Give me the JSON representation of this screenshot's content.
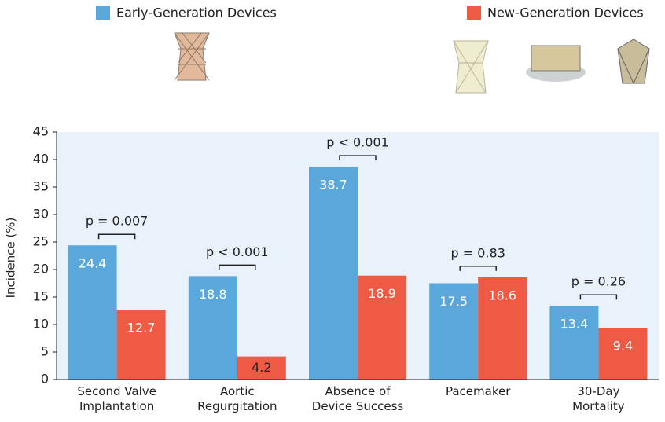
{
  "chart_data": {
    "type": "bar",
    "y_label": "Incidence (%)",
    "categories": [
      "Second Valve\nImplantation",
      "Aortic\nRegurgitation",
      "Absence of\nDevice Success",
      "Pacemaker",
      "30-Day\nMortality"
    ],
    "series": [
      {
        "name": "Early-Generation Devices",
        "color": "#5aa7dc",
        "values": [
          24.4,
          18.8,
          38.7,
          17.5,
          13.4
        ]
      },
      {
        "name": "New-Generation Devices",
        "color": "#ef5a45",
        "values": [
          12.7,
          4.2,
          18.9,
          18.6,
          9.4
        ]
      }
    ],
    "p_values": [
      "p = 0.007",
      "p < 0.001",
      "p < 0.001",
      "p = 0.83",
      "p = 0.26"
    ],
    "ylim": [
      0,
      45
    ],
    "yticks": [
      0,
      5,
      10,
      15,
      20,
      25,
      30,
      35,
      40,
      45
    ],
    "grid": false
  }
}
